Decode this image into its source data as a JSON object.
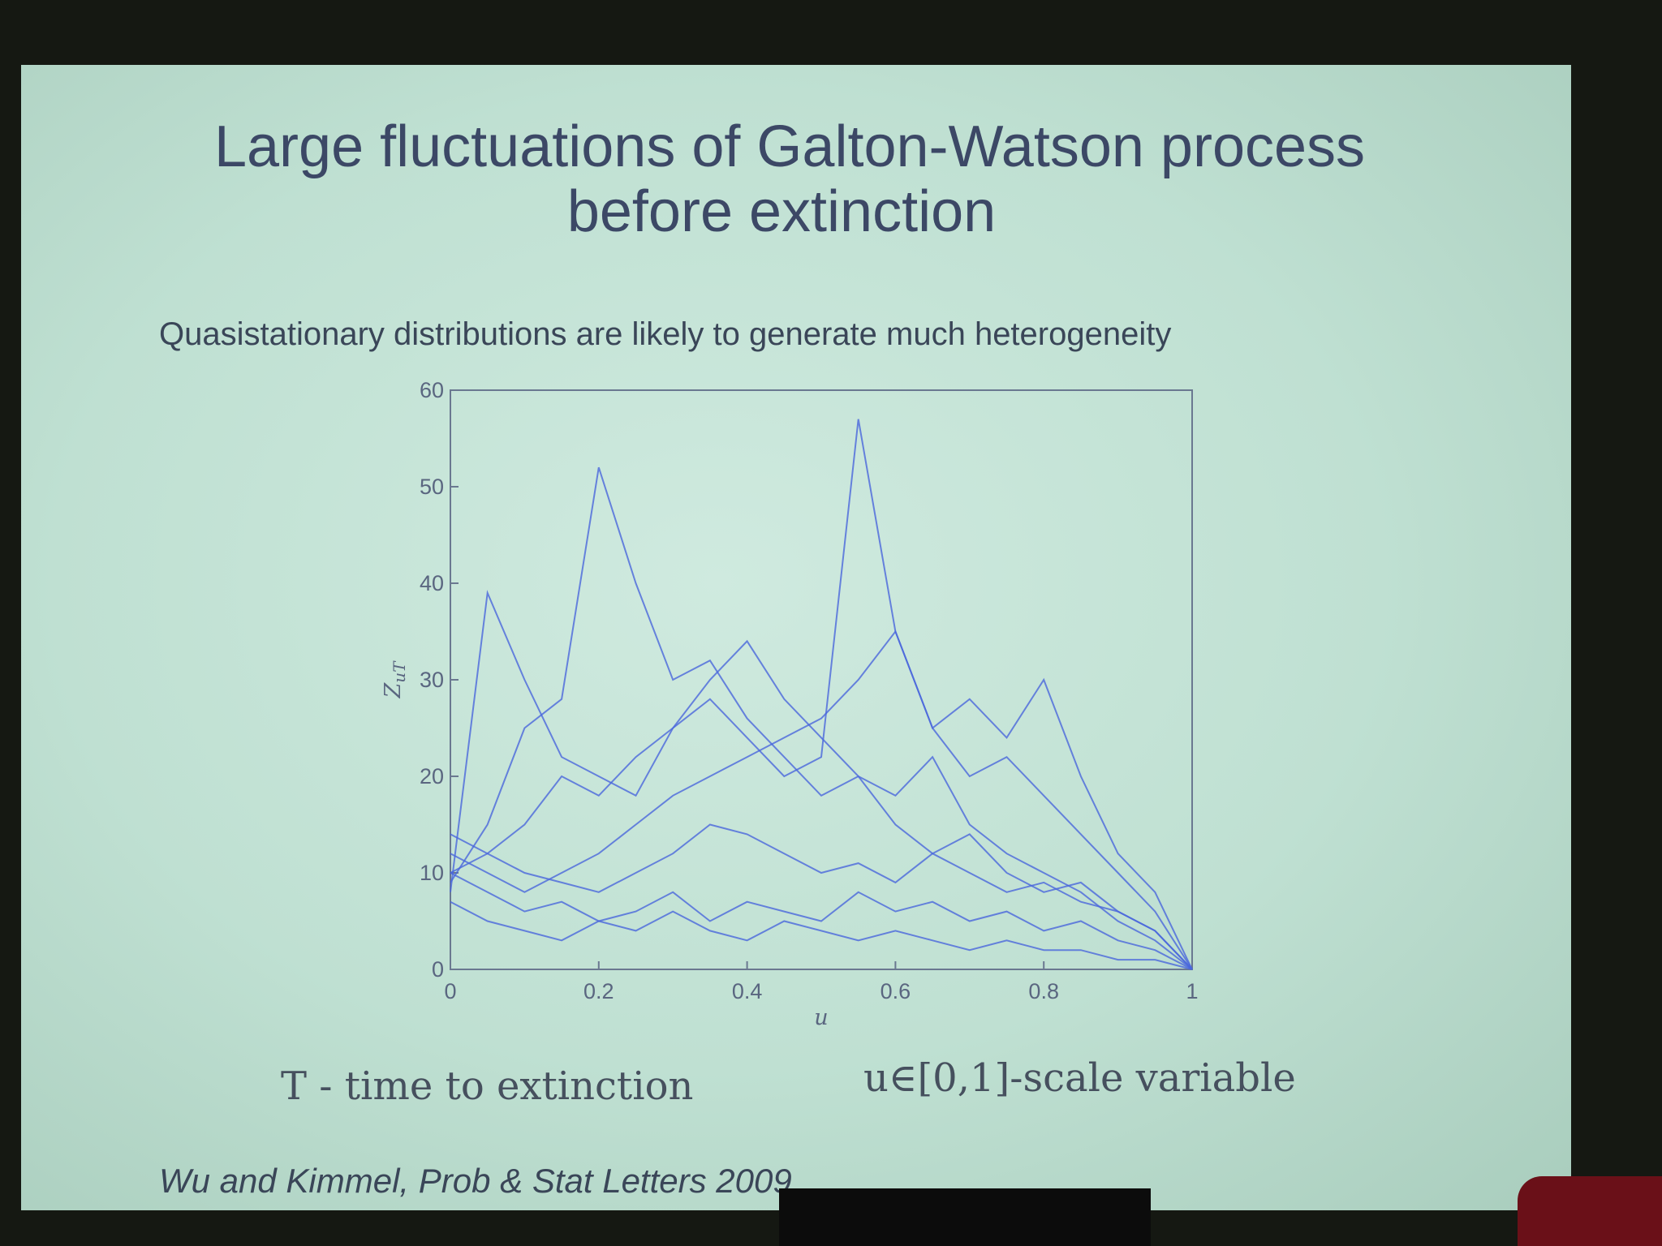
{
  "slide": {
    "title_lines": [
      "Large fluctuations of Galton-Watson process",
      "before extinction"
    ],
    "subtitle": "Quasistationary distributions are likely to generate much heterogeneity",
    "notes": [
      "T - time to extinction",
      "u∈[0,1]-scale variable"
    ],
    "citation": "Wu and Kimmel,  Prob & Stat Letters 2009"
  },
  "chart_data": {
    "type": "line",
    "xlabel": "u",
    "ylabel": "Z",
    "ylabel_subscript": "uT",
    "x": [
      0,
      0.05,
      0.1,
      0.15,
      0.2,
      0.25,
      0.3,
      0.35,
      0.4,
      0.45,
      0.5,
      0.55,
      0.6,
      0.65,
      0.7,
      0.75,
      0.8,
      0.85,
      0.9,
      0.95,
      1
    ],
    "xlim": [
      0,
      1
    ],
    "ylim": [
      0,
      60
    ],
    "xticks": [
      0,
      0.2,
      0.4,
      0.6,
      0.8,
      1
    ],
    "yticks": [
      0,
      10,
      20,
      30,
      40,
      50,
      60
    ],
    "series": [
      {
        "color": "#4a66dc",
        "values": [
          10,
          12,
          15,
          20,
          18,
          22,
          25,
          28,
          24,
          20,
          22,
          57,
          35,
          25,
          20,
          22,
          18,
          14,
          10,
          6,
          0
        ]
      },
      {
        "color": "#4a66dc",
        "values": [
          9,
          15,
          25,
          28,
          52,
          40,
          30,
          32,
          26,
          22,
          18,
          20,
          15,
          12,
          14,
          10,
          8,
          9,
          6,
          4,
          0
        ]
      },
      {
        "color": "#4a66dc",
        "values": [
          8,
          39,
          30,
          22,
          20,
          18,
          25,
          30,
          34,
          28,
          24,
          20,
          18,
          22,
          15,
          12,
          10,
          8,
          5,
          3,
          0
        ]
      },
      {
        "color": "#4a66dc",
        "values": [
          12,
          10,
          8,
          10,
          12,
          15,
          18,
          20,
          22,
          24,
          26,
          30,
          35,
          25,
          28,
          24,
          30,
          20,
          12,
          8,
          0
        ]
      },
      {
        "color": "#4a66dc",
        "values": [
          10,
          8,
          6,
          7,
          5,
          6,
          8,
          5,
          7,
          6,
          5,
          8,
          6,
          7,
          5,
          6,
          4,
          5,
          3,
          2,
          0
        ]
      },
      {
        "color": "#4a66dc",
        "values": [
          14,
          12,
          10,
          9,
          8,
          10,
          12,
          15,
          14,
          12,
          10,
          11,
          9,
          12,
          10,
          8,
          9,
          7,
          6,
          4,
          0
        ]
      },
      {
        "color": "#4a66dc",
        "values": [
          7,
          5,
          4,
          3,
          5,
          4,
          6,
          4,
          3,
          5,
          4,
          3,
          4,
          3,
          2,
          3,
          2,
          2,
          1,
          1,
          0
        ]
      }
    ]
  }
}
